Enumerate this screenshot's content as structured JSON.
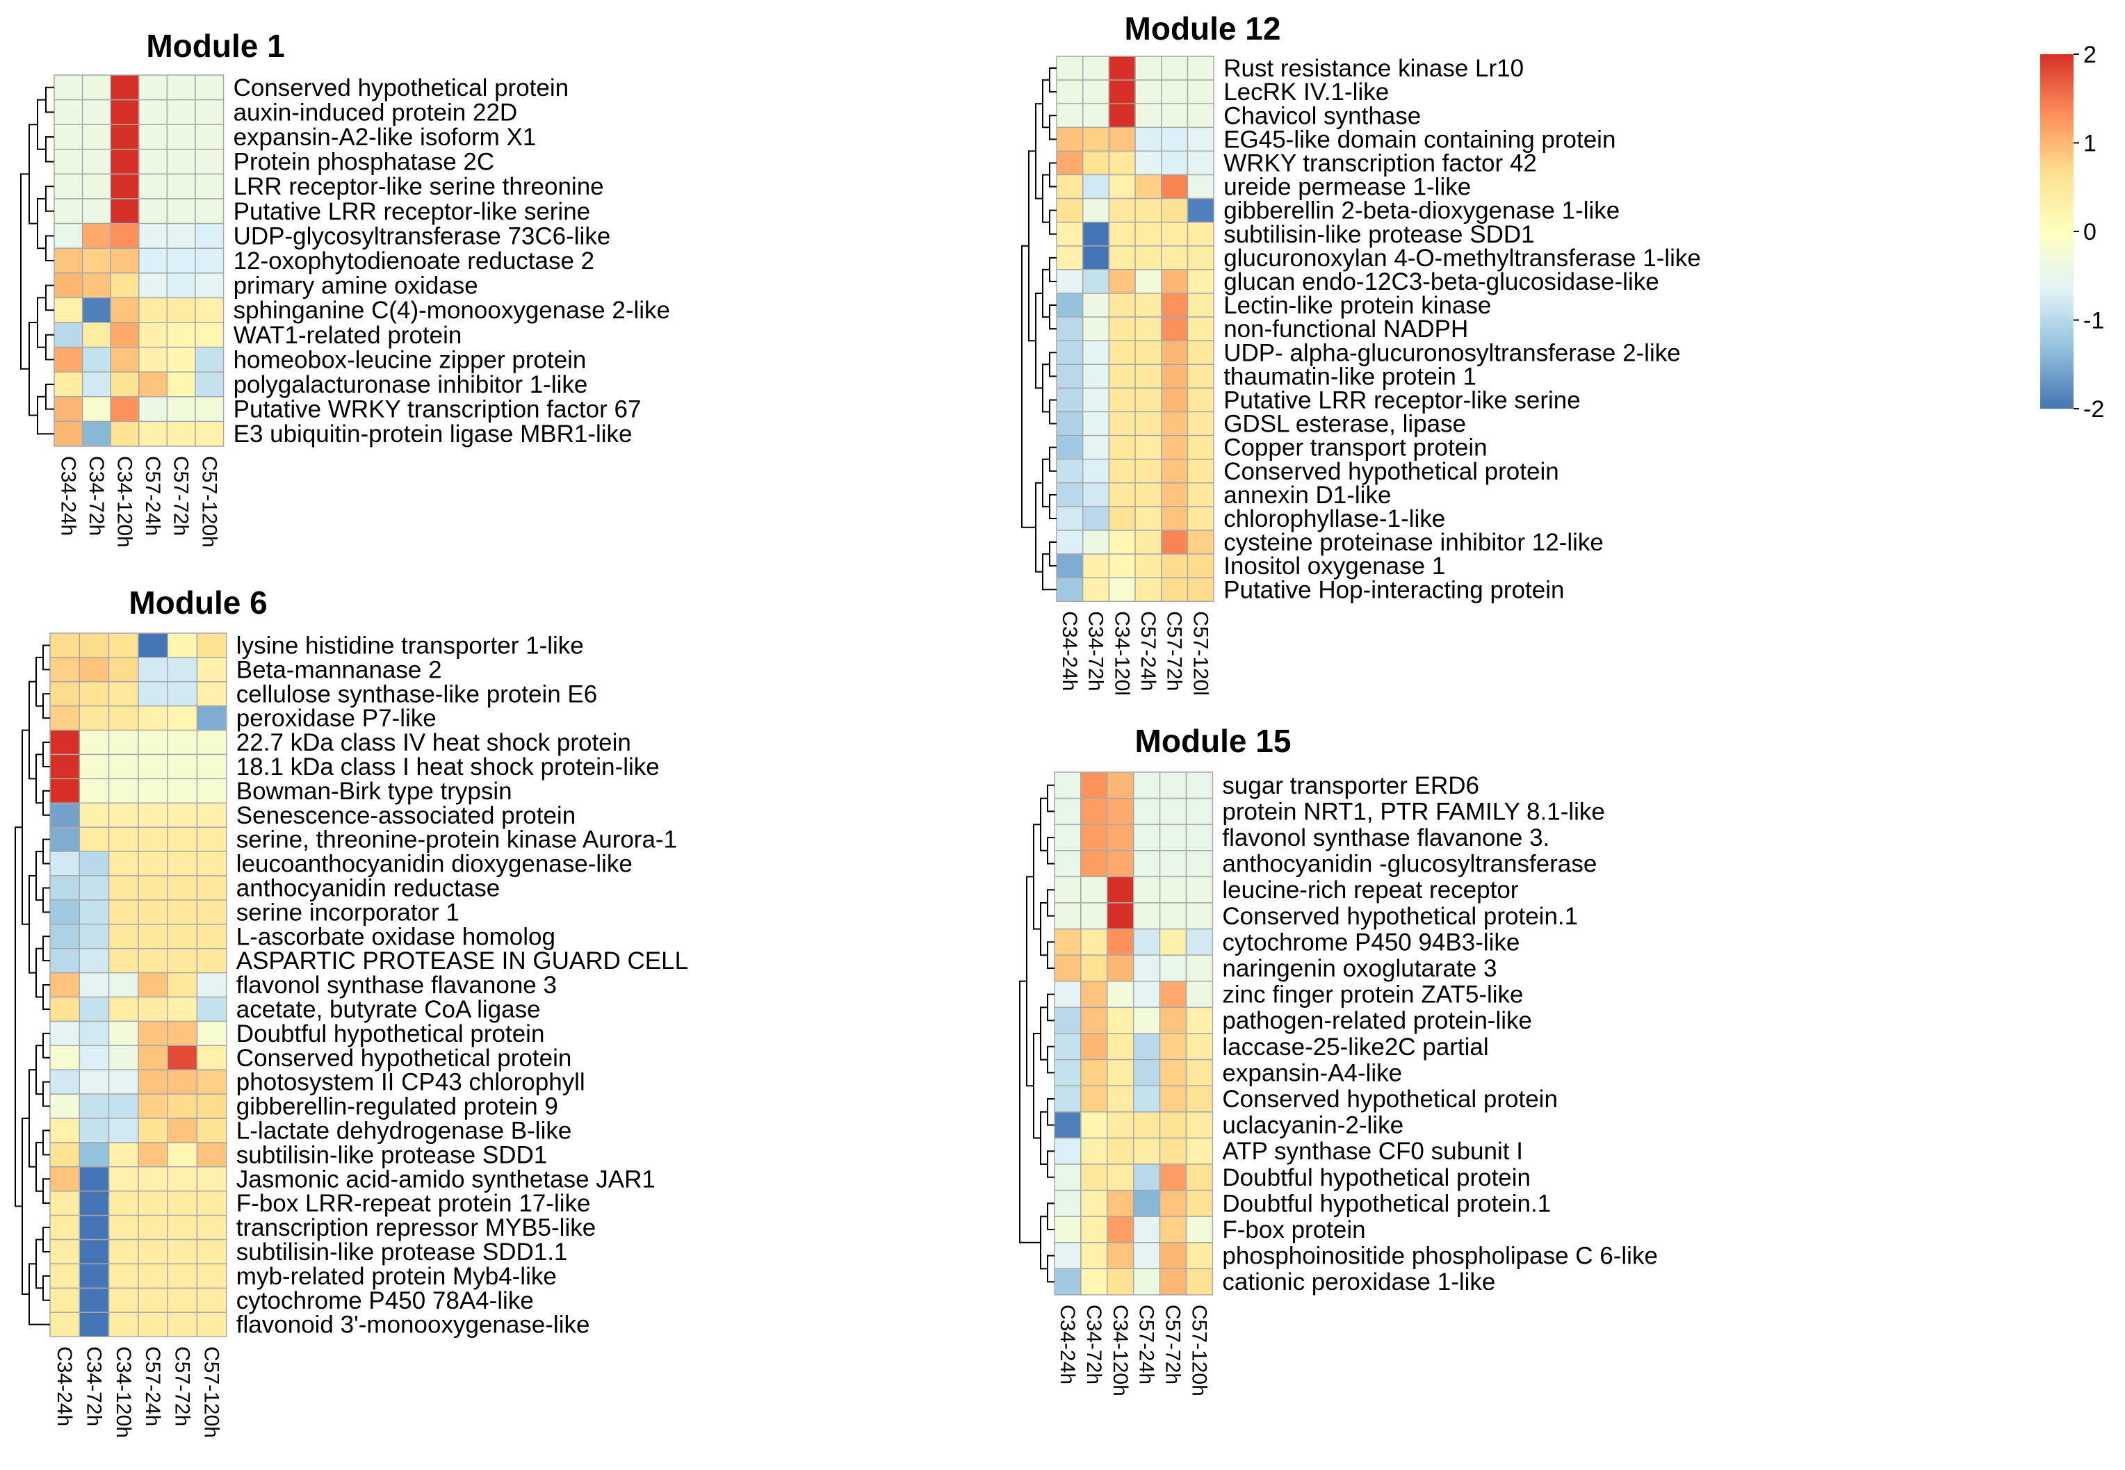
{
  "legend": {
    "ticks": [
      "2",
      "1",
      "0",
      "-1",
      "-2"
    ],
    "range": [
      -2,
      2
    ],
    "colors": [
      "#4575b4",
      "#91bfdb",
      "#e0f3f8",
      "#ffffbf",
      "#fee090",
      "#fc8d59",
      "#d73027"
    ]
  },
  "chart_data": [
    {
      "type": "heatmap",
      "title": "Module 1",
      "columns": [
        "C34-24h",
        "C34-72h",
        "C34-120h",
        "C57-24h",
        "C57-72h",
        "C57-120h"
      ],
      "rows": [
        "Conserved hypothetical protein",
        "auxin-induced protein 22D",
        "expansin-A2-like isoform X1",
        "Protein phosphatase 2C",
        "LRR receptor-like serine threonine",
        "Putative LRR receptor-like serine",
        "UDP-glycosyltransferase 73C6-like",
        "12-oxophytodienoate reductase 2",
        "primary amine oxidase",
        "sphinganine C(4)-monooxygenase 2-like",
        "WAT1-related protein",
        "homeobox-leucine zipper protein",
        "polygalacturonase inhibitor 1-like",
        "Putative WRKY transcription factor 67",
        "E3 ubiquitin-protein ligase MBR1-like"
      ],
      "values": [
        [
          -0.4,
          -0.4,
          2.0,
          -0.4,
          -0.4,
          -0.4
        ],
        [
          -0.4,
          -0.4,
          2.0,
          -0.4,
          -0.4,
          -0.4
        ],
        [
          -0.4,
          -0.4,
          2.0,
          -0.4,
          -0.4,
          -0.4
        ],
        [
          -0.4,
          -0.4,
          2.0,
          -0.4,
          -0.4,
          -0.4
        ],
        [
          -0.4,
          -0.4,
          2.0,
          -0.4,
          -0.4,
          -0.4
        ],
        [
          -0.4,
          -0.4,
          2.0,
          -0.4,
          -0.4,
          -0.4
        ],
        [
          -0.5,
          1.1,
          1.3,
          -0.6,
          -0.6,
          -0.7
        ],
        [
          0.9,
          0.8,
          0.9,
          -0.7,
          -0.7,
          -0.7
        ],
        [
          1.0,
          0.9,
          0.6,
          -0.6,
          -0.7,
          -0.6
        ],
        [
          0.3,
          -1.9,
          0.9,
          0.4,
          0.4,
          0.3
        ],
        [
          -1.0,
          0.4,
          1.1,
          0.3,
          0.2,
          0.2
        ],
        [
          1.1,
          -0.9,
          0.9,
          0.3,
          0.2,
          -0.9
        ],
        [
          0.4,
          -0.8,
          0.6,
          0.9,
          0.2,
          -0.9
        ],
        [
          1.0,
          -0.2,
          1.3,
          -0.4,
          -0.3,
          -0.3
        ],
        [
          1.0,
          -1.4,
          0.6,
          0.3,
          0.3,
          0.3
        ]
      ]
    },
    {
      "type": "heatmap",
      "title": "Module 6",
      "columns": [
        "C34-24h",
        "C34-72h",
        "C34-120h",
        "C57-24h",
        "C57-72h",
        "C57-120h"
      ],
      "rows": [
        "lysine histidine transporter 1-like",
        "Beta-mannanase 2",
        "cellulose synthase-like protein E6",
        "peroxidase P7-like",
        "22.7 kDa class IV heat shock protein",
        "18.1 kDa class I heat shock protein-like",
        "Bowman-Birk type trypsin",
        "Senescence-associated protein",
        "serine, threonine-protein kinase Aurora-1",
        "leucoanthocyanidin dioxygenase-like",
        "anthocyanidin reductase",
        "serine incorporator 1",
        "L-ascorbate oxidase homolog",
        "ASPARTIC PROTEASE IN GUARD CELL",
        "flavonol synthase flavanone 3",
        "acetate, butyrate CoA ligase",
        "Doubtful hypothetical protein",
        "Conserved hypothetical protein",
        "photosystem II CP43 chlorophyll",
        "gibberellin-regulated protein 9",
        "L-lactate dehydrogenase B-like",
        "subtilisin-like protease SDD1",
        "Jasmonic acid-amido synthetase JAR1",
        "F-box LRR-repeat protein 17-like",
        "transcription repressor MYB5-like",
        "subtilisin-like protease SDD1.1",
        "myb-related protein Myb4-like",
        "cytochrome P450 78A4-like",
        "flavonoid 3'-monooxygenase-like"
      ],
      "values": [
        [
          0.7,
          0.7,
          0.6,
          -2.0,
          0.2,
          0.6
        ],
        [
          0.8,
          0.9,
          0.7,
          -0.8,
          -0.8,
          0.3
        ],
        [
          0.7,
          0.6,
          0.5,
          -0.8,
          -0.8,
          0.3
        ],
        [
          0.8,
          0.5,
          0.5,
          0.3,
          0.2,
          -1.5
        ],
        [
          2.0,
          -0.2,
          -0.2,
          -0.2,
          -0.2,
          -0.2
        ],
        [
          2.0,
          -0.2,
          -0.2,
          -0.2,
          -0.2,
          -0.2
        ],
        [
          2.0,
          -0.2,
          -0.2,
          -0.2,
          -0.2,
          -0.2
        ],
        [
          -1.6,
          0.3,
          0.3,
          0.3,
          0.3,
          0.3
        ],
        [
          -1.5,
          0.4,
          0.4,
          0.4,
          0.4,
          0.4
        ],
        [
          -0.8,
          -1.0,
          0.4,
          0.4,
          0.4,
          0.4
        ],
        [
          -1.0,
          -0.9,
          0.5,
          0.5,
          0.5,
          0.5
        ],
        [
          -1.2,
          -0.9,
          0.5,
          0.5,
          0.5,
          0.5
        ],
        [
          -1.1,
          -0.9,
          0.5,
          0.5,
          0.5,
          0.5
        ],
        [
          -1.0,
          -0.8,
          0.5,
          0.5,
          0.5,
          0.5
        ],
        [
          0.9,
          -0.6,
          -0.5,
          0.9,
          0.5,
          -0.6
        ],
        [
          0.6,
          -0.9,
          0.4,
          0.4,
          0.3,
          -0.9
        ],
        [
          -0.6,
          -0.8,
          -0.3,
          0.9,
          0.9,
          -0.2
        ],
        [
          -0.2,
          -0.7,
          -0.4,
          0.9,
          1.8,
          0.3
        ],
        [
          -0.8,
          -0.6,
          -0.6,
          0.9,
          0.9,
          0.8
        ],
        [
          -0.3,
          -0.9,
          -0.9,
          0.8,
          0.7,
          0.7
        ],
        [
          0.3,
          -0.9,
          -0.8,
          0.6,
          0.9,
          0.6
        ],
        [
          0.6,
          -1.3,
          0.3,
          0.9,
          0.2,
          0.9
        ],
        [
          0.9,
          -2.0,
          0.3,
          0.3,
          0.3,
          0.3
        ],
        [
          0.4,
          -2.0,
          0.4,
          0.4,
          0.4,
          0.4
        ],
        [
          0.4,
          -2.0,
          0.4,
          0.4,
          0.4,
          0.4
        ],
        [
          0.4,
          -2.0,
          0.4,
          0.4,
          0.4,
          0.4
        ],
        [
          0.4,
          -2.0,
          0.4,
          0.4,
          0.4,
          0.4
        ],
        [
          0.4,
          -2.0,
          0.4,
          0.4,
          0.4,
          0.4
        ],
        [
          0.4,
          -2.0,
          0.4,
          0.4,
          0.4,
          0.4
        ]
      ]
    },
    {
      "type": "heatmap",
      "title": "Module 12",
      "columns": [
        "C34-24h",
        "C34-72h",
        "C34-120l",
        "C57-24h",
        "C57-72h",
        "C57-120l"
      ],
      "rows": [
        "Rust resistance kinase Lr10",
        "LecRK IV.1-like",
        "Chavicol synthase",
        "EG45-like domain containing protein",
        "WRKY transcription factor 42",
        "ureide permease 1-like",
        "gibberellin 2-beta-dioxygenase 1-like",
        "subtilisin-like protease SDD1",
        "glucuronoxylan 4-O-methyltransferase 1-like",
        "glucan endo-12C3-beta-glucosidase-like",
        "Lectin-like protein kinase",
        "non-functional NADPH",
        "UDP- alpha-glucuronosyltransferase 2-like",
        "thaumatin-like protein 1",
        "Putative LRR receptor-like serine",
        "GDSL esterase, lipase",
        "Copper transport protein",
        "Conserved hypothetical protein",
        "annexin D1-like",
        "chlorophyllase-1-like",
        "cysteine proteinase inhibitor 12-like",
        "Inositol oxygenase 1",
        "Putative Hop-interacting protein"
      ],
      "values": [
        [
          -0.4,
          -0.4,
          2.0,
          -0.4,
          -0.4,
          -0.4
        ],
        [
          -0.4,
          -0.4,
          2.0,
          -0.4,
          -0.4,
          -0.4
        ],
        [
          -0.4,
          -0.4,
          2.0,
          -0.4,
          -0.4,
          -0.4
        ],
        [
          0.9,
          0.8,
          0.9,
          -0.7,
          -0.7,
          -0.6
        ],
        [
          1.1,
          0.6,
          0.5,
          -0.6,
          -0.7,
          -0.6
        ],
        [
          0.5,
          -0.8,
          0.3,
          0.8,
          1.4,
          -0.5
        ],
        [
          0.6,
          -0.4,
          0.5,
          0.5,
          0.6,
          -1.9
        ],
        [
          0.3,
          -2.0,
          0.4,
          0.4,
          0.4,
          0.4
        ],
        [
          0.3,
          -2.0,
          0.4,
          0.4,
          0.4,
          0.4
        ],
        [
          -0.6,
          -0.9,
          0.9,
          -0.3,
          1.0,
          0.3
        ],
        [
          -1.3,
          -0.4,
          0.5,
          0.4,
          1.3,
          0.4
        ],
        [
          -1.0,
          -0.4,
          0.5,
          0.4,
          1.3,
          0.4
        ],
        [
          -1.0,
          -0.6,
          0.5,
          0.5,
          1.0,
          0.5
        ],
        [
          -1.0,
          -0.6,
          0.5,
          0.5,
          1.0,
          0.5
        ],
        [
          -1.0,
          -0.6,
          0.5,
          0.5,
          1.0,
          0.5
        ],
        [
          -1.1,
          -0.6,
          0.5,
          0.5,
          0.9,
          0.5
        ],
        [
          -1.2,
          -0.6,
          0.5,
          0.4,
          0.9,
          0.5
        ],
        [
          -0.9,
          -0.7,
          0.5,
          0.5,
          0.9,
          0.5
        ],
        [
          -1.0,
          -0.8,
          0.5,
          0.5,
          0.9,
          0.5
        ],
        [
          -0.8,
          -1.0,
          0.6,
          0.4,
          0.9,
          0.5
        ],
        [
          -0.7,
          -0.4,
          0.2,
          0.4,
          1.4,
          0.8
        ],
        [
          -1.5,
          0.3,
          0.2,
          0.4,
          0.7,
          0.7
        ],
        [
          -1.2,
          0.3,
          -0.2,
          0.4,
          0.7,
          0.7
        ]
      ]
    },
    {
      "type": "heatmap",
      "title": "Module 15",
      "columns": [
        "C34-24h",
        "C34-72h",
        "C34-120h",
        "C57-24h",
        "C57-72h",
        "C57-120h"
      ],
      "rows": [
        "sugar transporter ERD6",
        "protein NRT1, PTR FAMILY 8.1-like",
        "flavonol synthase flavanone 3.",
        "anthocyanidin -glucosyltransferase",
        "leucine-rich repeat receptor",
        "Conserved hypothetical protein.1",
        "cytochrome P450 94B3-like",
        "naringenin oxoglutarate 3",
        "zinc finger protein ZAT5-like",
        "pathogen-related protein-like",
        "laccase-25-like2C partial",
        "expansin-A4-like",
        "Conserved hypothetical protein",
        "uclacyanin-2-like",
        "ATP synthase CF0 subunit I",
        "Doubtful hypothetical protein",
        "Doubtful hypothetical protein.1",
        "F-box protein",
        "phosphoinositide phospholipase C 6-like",
        "cationic peroxidase 1-like"
      ],
      "values": [
        [
          -0.5,
          1.3,
          1.0,
          -0.5,
          -0.5,
          -0.5
        ],
        [
          -0.5,
          1.2,
          1.1,
          -0.5,
          -0.5,
          -0.5
        ],
        [
          -0.5,
          1.2,
          1.1,
          -0.5,
          -0.5,
          -0.5
        ],
        [
          -0.5,
          1.2,
          1.1,
          -0.5,
          -0.5,
          -0.5
        ],
        [
          -0.4,
          -0.4,
          2.0,
          -0.4,
          -0.4,
          -0.4
        ],
        [
          -0.4,
          -0.4,
          2.0,
          -0.4,
          -0.4,
          -0.4
        ],
        [
          0.8,
          0.4,
          1.3,
          -0.8,
          0.3,
          -0.8
        ],
        [
          0.9,
          0.6,
          1.0,
          -0.6,
          -0.5,
          -0.4
        ],
        [
          -0.6,
          0.9,
          -0.3,
          -0.6,
          1.1,
          -0.4
        ],
        [
          -1.0,
          0.9,
          0.3,
          -0.3,
          0.9,
          0.3
        ],
        [
          -0.9,
          1.0,
          0.4,
          -1.0,
          0.8,
          0.4
        ],
        [
          -0.9,
          0.8,
          0.4,
          -1.0,
          0.8,
          0.5
        ],
        [
          -0.9,
          0.8,
          0.4,
          -0.9,
          0.8,
          0.6
        ],
        [
          -1.9,
          0.2,
          0.4,
          0.5,
          0.6,
          0.4
        ],
        [
          -0.7,
          0.3,
          0.5,
          0.4,
          0.6,
          0.3
        ],
        [
          -0.5,
          0.5,
          0.4,
          -1.0,
          1.2,
          0.6
        ],
        [
          -0.5,
          0.3,
          0.9,
          -1.4,
          0.9,
          0.6
        ],
        [
          -0.3,
          0.3,
          1.2,
          -0.6,
          0.8,
          -0.3
        ],
        [
          -0.6,
          0.3,
          0.9,
          -0.6,
          1.0,
          0.4
        ],
        [
          -1.2,
          0.2,
          0.6,
          -0.4,
          1.0,
          0.6
        ]
      ]
    }
  ]
}
